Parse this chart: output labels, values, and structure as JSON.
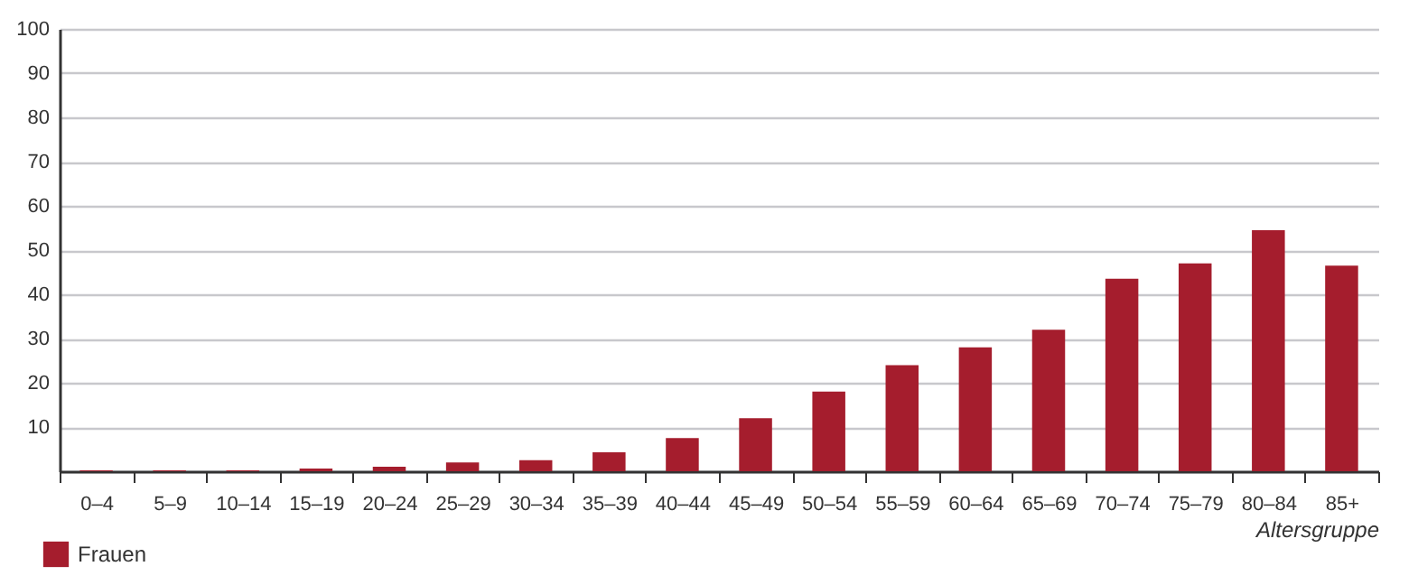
{
  "chart_data": {
    "type": "bar",
    "xlabel": "Altersgruppe",
    "categories": [
      "0–4",
      "5–9",
      "10–14",
      "15–19",
      "20–24",
      "25–29",
      "30–34",
      "35–39",
      "40–44",
      "45–49",
      "50–54",
      "55–59",
      "60–64",
      "65–69",
      "70–74",
      "75–79",
      "80–84",
      "85+"
    ],
    "series": [
      {
        "name": "Frauen",
        "color": "#a51d2d",
        "values": [
          0.2,
          0.2,
          0.2,
          0.6,
          1,
          2,
          2.5,
          4.3,
          7.5,
          12,
          18,
          24,
          28,
          32,
          43.5,
          47,
          54.5,
          46.5
        ]
      }
    ],
    "ylim": [
      0,
      100
    ],
    "yticks": [
      {
        "value": 0,
        "label": null
      },
      10,
      20,
      30,
      40,
      50,
      60,
      70,
      80,
      90,
      100
    ],
    "grid": "y",
    "legend": "bottom left"
  }
}
